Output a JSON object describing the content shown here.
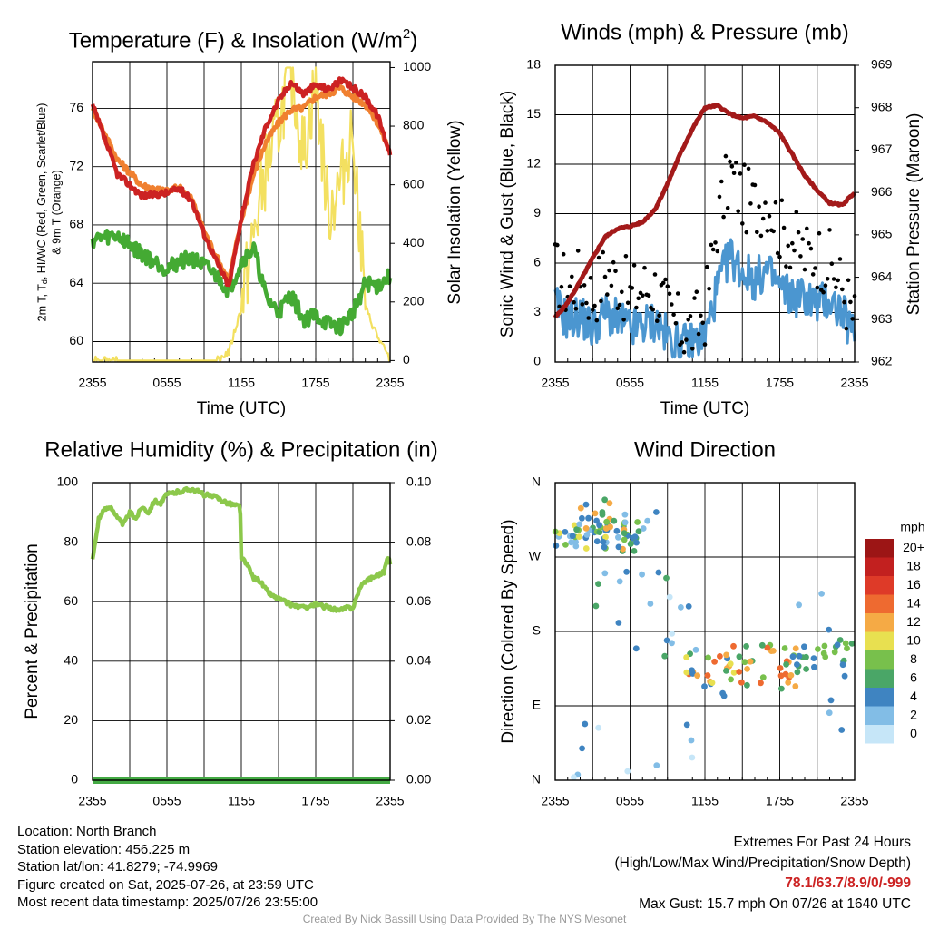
{
  "chart_data": [
    {
      "type": "line",
      "title": "Temperature (F) & Insolation (W/m2)",
      "xlabel": "Time (UTC)",
      "ylabel": "2m T, Td, HI/WC (Red, Green, Scarlet/Blue) & 9m T (Orange)",
      "y2label": "Solar Insolation (Yellow)",
      "x_ticks": [
        "2355",
        "0555",
        "1155",
        "1755",
        "2355"
      ],
      "ylim": [
        58.6,
        79.2
      ],
      "y_ticks": [
        60,
        64,
        68,
        72,
        76
      ],
      "y2lim": [
        -5,
        1020
      ],
      "y2_ticks": [
        0,
        200,
        400,
        600,
        800,
        1000
      ],
      "x_hours": [
        0,
        2,
        4,
        6,
        7,
        8,
        9,
        10,
        11,
        12,
        13,
        14,
        15,
        16,
        17,
        18,
        19,
        20,
        21,
        22,
        23,
        24
      ],
      "series": [
        {
          "name": "2m T",
          "color": "#cc2222",
          "axis": "left",
          "values": [
            76.2,
            71.5,
            70.0,
            70.2,
            70.5,
            69.7,
            67.4,
            65.5,
            63.8,
            68.5,
            72.2,
            74.8,
            76.5,
            77.8,
            77.0,
            77.6,
            77.3,
            77.9,
            77.4,
            76.8,
            75.5,
            72.9
          ]
        },
        {
          "name": "9m T",
          "color": "#f08030",
          "axis": "left",
          "values": [
            76.0,
            72.5,
            70.7,
            70.3,
            70.6,
            69.8,
            67.6,
            65.8,
            64.2,
            68.3,
            71.5,
            73.7,
            75.0,
            75.9,
            76.0,
            76.8,
            77.0,
            77.4,
            76.8,
            76.3,
            75.0,
            73.0
          ]
        },
        {
          "name": "Td",
          "color": "#44aa33",
          "axis": "left",
          "values": [
            67.0,
            67.3,
            66.0,
            65.0,
            65.5,
            65.7,
            65.2,
            64.5,
            63.5,
            65.5,
            66.4,
            63.0,
            62.0,
            63.2,
            61.5,
            61.8,
            61.2,
            61.0,
            62.0,
            64.0,
            63.8,
            64.5
          ]
        },
        {
          "name": "Solar Insolation",
          "color": "#f3e060",
          "axis": "right",
          "values": [
            6,
            0,
            0,
            0,
            0,
            0,
            0,
            0,
            30,
            180,
            420,
            650,
            800,
            1000,
            700,
            950,
            500,
            600,
            800,
            180,
            80,
            0
          ]
        }
      ]
    },
    {
      "type": "line",
      "title": "Winds (mph) & Pressure (mb)",
      "xlabel": "Time (UTC)",
      "ylabel": "Sonic Wind & Gust (Blue, Black)",
      "y2label": "Station Pressure (Maroon)",
      "x_ticks": [
        "2355",
        "0555",
        "1155",
        "1755",
        "2355"
      ],
      "ylim": [
        0,
        18
      ],
      "y_ticks": [
        0,
        3,
        6,
        9,
        12,
        15,
        18
      ],
      "y2lim": [
        962,
        969
      ],
      "y2_ticks": [
        962,
        963,
        964,
        965,
        966,
        967,
        968,
        969
      ],
      "x_hours": [
        0,
        1,
        2,
        3,
        4,
        5,
        6,
        7,
        8,
        9,
        10,
        11,
        12,
        13,
        14,
        15,
        16,
        17,
        18,
        19,
        20,
        21,
        22,
        23,
        24
      ],
      "series": [
        {
          "name": "Sonic Wind",
          "color": "#4b96d0",
          "axis": "left",
          "values": [
            3.5,
            2.5,
            2.8,
            2.0,
            3.0,
            2.5,
            2.0,
            2.2,
            2.5,
            1.5,
            1.0,
            1.2,
            1.5,
            4.5,
            6.5,
            5.5,
            5.0,
            5.5,
            4.5,
            4.0,
            4.0,
            3.5,
            3.8,
            3.0,
            1.5
          ]
        },
        {
          "name": "Gust",
          "color": "#000000",
          "axis": "left",
          "values": [
            5.5,
            4.5,
            5.0,
            4.0,
            5.5,
            5.0,
            4.0,
            4.5,
            4.5,
            3.0,
            2.0,
            2.0,
            3.0,
            8.5,
            11.5,
            10.0,
            9.5,
            10.0,
            8.0,
            7.5,
            6.5,
            6.5,
            6.0,
            4.5,
            2.5
          ]
        },
        {
          "name": "Station Pressure",
          "color": "#a31a1a",
          "axis": "right",
          "values": [
            963.05,
            963.4,
            963.9,
            964.45,
            964.95,
            965.15,
            965.2,
            965.3,
            965.6,
            966.2,
            966.9,
            967.5,
            968.0,
            968.05,
            967.85,
            967.75,
            967.8,
            967.65,
            967.4,
            966.9,
            966.4,
            966.05,
            965.75,
            965.7,
            966.0
          ]
        }
      ]
    },
    {
      "type": "line",
      "title": "Relative Humidity (%) & Precipitation (in)",
      "ylabel": "Percent & Precipitation",
      "x_ticks": [
        "2355",
        "0555",
        "1155",
        "1755",
        "2355"
      ],
      "ylim": [
        0,
        100
      ],
      "y_ticks": [
        0,
        20,
        40,
        60,
        80,
        100
      ],
      "y2lim": [
        0,
        0.1
      ],
      "y2_ticks": [
        "0.00",
        "0.02",
        "0.04",
        "0.06",
        "0.08",
        "0.10"
      ],
      "x_hours": [
        0,
        0.5,
        1,
        1.5,
        2,
        2.5,
        3,
        3.5,
        4,
        4.5,
        5,
        5.5,
        6,
        7,
        8,
        9,
        10,
        11,
        11.9,
        12,
        12.5,
        13,
        13.5,
        14,
        14.5,
        15,
        16,
        17,
        18,
        19,
        20,
        20.5,
        21,
        21.5,
        22,
        22.5,
        23,
        23.5,
        23.8,
        24
      ],
      "series": [
        {
          "name": "Relative Humidity",
          "color": "#8cc84b",
          "axis": "left",
          "values": [
            74,
            88,
            91,
            92,
            88,
            86,
            90,
            88,
            92,
            90,
            94,
            93,
            96,
            97,
            98,
            96,
            95,
            93,
            92,
            75,
            72,
            68,
            67,
            64,
            62,
            61,
            59,
            58,
            59,
            58,
            57,
            58,
            58,
            64,
            67,
            68,
            69,
            70,
            75,
            73
          ]
        },
        {
          "name": "Precipitation",
          "color": "#44aa44",
          "axis": "right",
          "values": [
            0,
            0,
            0,
            0,
            0,
            0,
            0,
            0,
            0,
            0,
            0,
            0,
            0,
            0,
            0,
            0,
            0,
            0,
            0,
            0,
            0,
            0,
            0,
            0,
            0,
            0,
            0,
            0,
            0,
            0,
            0,
            0,
            0,
            0,
            0,
            0,
            0,
            0,
            0,
            0
          ]
        }
      ]
    },
    {
      "type": "scatter",
      "title": "Wind Direction",
      "ylabel": "Direction (Colored By Speed)",
      "x_ticks": [
        "2355",
        "0555",
        "1155",
        "1755",
        "2355"
      ],
      "y_ticks": [
        "N",
        "E",
        "S",
        "W",
        "N"
      ],
      "ylim": [
        0,
        360
      ],
      "legend": {
        "title": "mph",
        "labels": [
          "0",
          "2",
          "4",
          "6",
          "8",
          "10",
          "12",
          "14",
          "16",
          "18",
          "20+"
        ],
        "colors": [
          "#c6e6f8",
          "#82bde6",
          "#3f84c1",
          "#4aa667",
          "#78c04c",
          "#e8e050",
          "#f5aa45",
          "#ee6a30",
          "#de3a28",
          "#c2201f",
          "#9c1515"
        ]
      },
      "clusters": [
        {
          "t0": 0.0,
          "t1": 4.2,
          "d0": 280,
          "d1": 310,
          "n": 34,
          "speeds": [
            2,
            3,
            4,
            5,
            1
          ]
        },
        {
          "t0": 1.2,
          "t1": 4.5,
          "d0": 300,
          "d1": 345,
          "n": 16,
          "speeds": [
            1,
            2,
            3,
            6
          ]
        },
        {
          "t0": 4.0,
          "t1": 6.6,
          "d0": 275,
          "d1": 315,
          "n": 18,
          "speeds": [
            2,
            3,
            4,
            6
          ]
        },
        {
          "t0": 5.0,
          "t1": 8.5,
          "d0": 285,
          "d1": 325,
          "n": 12,
          "speeds": [
            1,
            2,
            3
          ]
        },
        {
          "t0": 3.0,
          "t1": 11.5,
          "d0": 150,
          "d1": 260,
          "n": 20,
          "speeds": [
            0,
            1,
            2,
            3
          ]
        },
        {
          "t0": 1.0,
          "t1": 12.0,
          "d0": 0,
          "d1": 80,
          "n": 10,
          "speeds": [
            0,
            1,
            2
          ]
        },
        {
          "t0": 10.5,
          "t1": 14.5,
          "d0": 100,
          "d1": 150,
          "n": 22,
          "speeds": [
            2,
            4,
            5,
            6,
            7
          ]
        },
        {
          "t0": 13.5,
          "t1": 19.5,
          "d0": 110,
          "d1": 165,
          "n": 34,
          "speeds": [
            3,
            4,
            6,
            7
          ]
        },
        {
          "t0": 19.0,
          "t1": 24.0,
          "d0": 125,
          "d1": 170,
          "n": 26,
          "speeds": [
            2,
            3,
            4
          ]
        },
        {
          "t0": 19.0,
          "t1": 24.0,
          "d0": 60,
          "d1": 240,
          "n": 6,
          "speeds": [
            1,
            2
          ]
        }
      ]
    }
  ],
  "footer": {
    "location": "Location: North Branch",
    "elevation": "Station elevation: 456.225 m",
    "latlon": "Station lat/lon: 41.8279; -74.9969",
    "created": "Figure created on Sat, 2025-07-26, at 23:59 UTC",
    "recent": "Most recent data timestamp: 2025/07/26 23:55:00",
    "extremes_title": "Extremes For Past 24 Hours",
    "extremes_fields": "(High/Low/Max Wind/Precipitation/Snow Depth)",
    "extremes_values": "78.1/63.7/8.9/0/-999",
    "max_gust": "Max Gust: 15.7 mph On 07/26 at 1640 UTC",
    "credit": "Created By Nick Bassill Using Data Provided By The NYS Mesonet"
  }
}
